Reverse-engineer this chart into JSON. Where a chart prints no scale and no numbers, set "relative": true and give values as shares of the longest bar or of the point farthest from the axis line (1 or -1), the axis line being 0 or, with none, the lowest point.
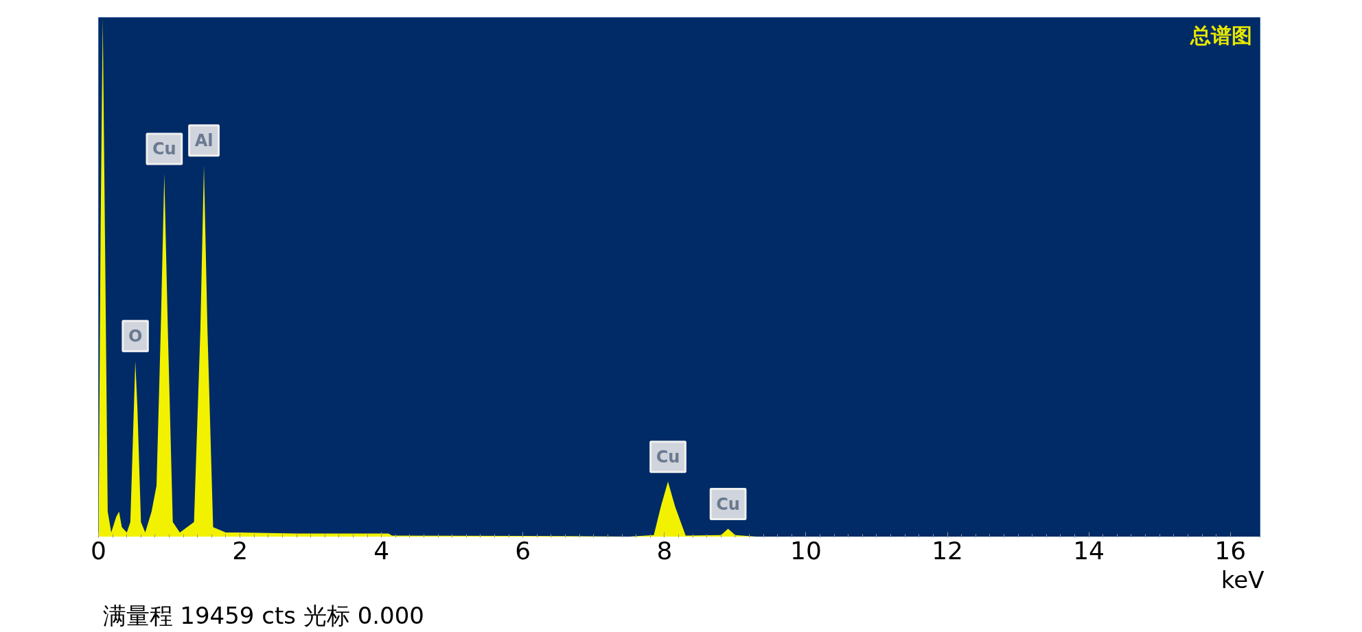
{
  "chart_data": {
    "type": "area",
    "relative": true,
    "title": "总谱图",
    "xlabel": "keV",
    "x": [
      0,
      0.03,
      0.06,
      0.09,
      0.13,
      0.18,
      0.25,
      0.29,
      0.33,
      0.4,
      0.45,
      0.5,
      0.52,
      0.55,
      0.6,
      0.66,
      0.75,
      0.82,
      0.88,
      0.93,
      0.98,
      1.05,
      1.15,
      1.35,
      1.44,
      1.49,
      1.54,
      1.62,
      1.8,
      2.0,
      2.8,
      4.1,
      4.15,
      6.6,
      7.5,
      7.85,
      7.95,
      8.05,
      8.15,
      8.3,
      8.8,
      8.9,
      9.0,
      9.3,
      12,
      16.4
    ],
    "series": [
      {
        "color": "#f2f200",
        "values": [
          0,
          0.6,
          1.0,
          0.6,
          0.05,
          0.01,
          0.04,
          0.05,
          0.02,
          0.01,
          0.03,
          0.25,
          0.34,
          0.25,
          0.03,
          0.01,
          0.05,
          0.1,
          0.4,
          0.7,
          0.4,
          0.03,
          0.01,
          0.03,
          0.4,
          0.716,
          0.4,
          0.02,
          0.01,
          0.01,
          0.008,
          0.008,
          0.004,
          0.003,
          0.002,
          0.005,
          0.06,
          0.108,
          0.06,
          0.004,
          0.005,
          0.017,
          0.005,
          0.002,
          0.001,
          0.001
        ]
      }
    ],
    "xlim": [
      0,
      16.42
    ],
    "xticks": [
      0,
      2,
      4,
      6,
      8,
      10,
      12,
      14,
      16
    ],
    "grid": false,
    "annotations": [
      {
        "text": "O",
        "x": 0.52,
        "y": 0.34
      },
      {
        "text": "Cu",
        "x": 0.93,
        "y": 0.7
      },
      {
        "text": "Al",
        "x": 1.49,
        "y": 0.716
      },
      {
        "text": "Cu",
        "x": 8.05,
        "y": 0.108
      },
      {
        "text": "Cu",
        "x": 8.9,
        "y": 0.017
      },
      "满量程 19459 cts 光标 0.000"
    ]
  }
}
